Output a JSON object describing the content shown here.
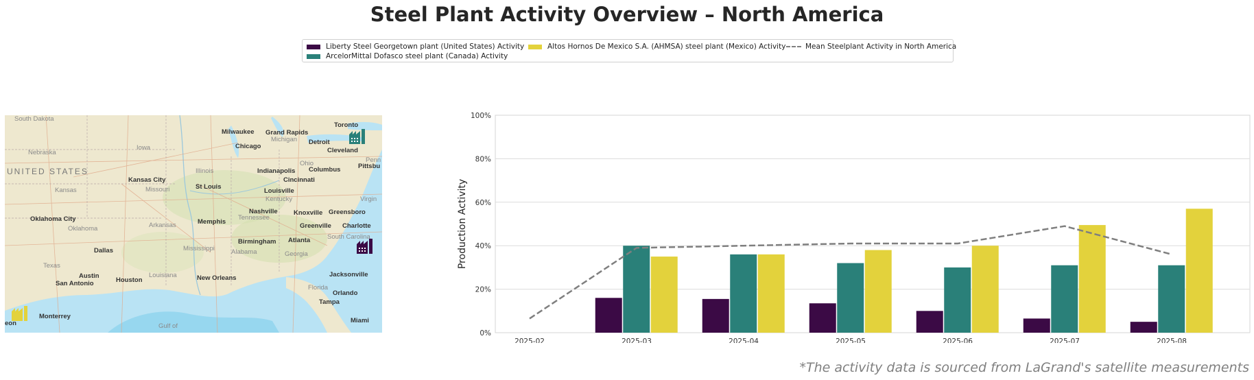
{
  "title": "Steel Plant Activity Overview – North America",
  "footnote": "*The activity data is sourced from LaGrand's satellite measurements",
  "legend": [
    {
      "label": "Liberty Steel Georgetown plant (United States) Activity",
      "color": "#3b0a45",
      "kind": "bar"
    },
    {
      "label": "ArcelorMittal Dofasco steel plant (Canada) Activity",
      "color": "#2a8079",
      "kind": "bar"
    },
    {
      "label": "Altos Hornos De Mexico S.A. (AHMSA) steel plant (Mexico) Activity",
      "color": "#e3d23c",
      "kind": "bar"
    },
    {
      "label": "Mean Steelplant Activity in North America",
      "color": "#7f7f7f",
      "kind": "dash"
    }
  ],
  "map": {
    "country_label": "UNITED STATES",
    "water_label": "Gulf of",
    "cities": [
      {
        "name": "South Dakota",
        "style": "light"
      },
      {
        "name": "Nebraska",
        "style": "light"
      },
      {
        "name": "Iowa",
        "style": "light"
      },
      {
        "name": "Kansas",
        "style": "light"
      },
      {
        "name": "Kansas City",
        "style": "bold"
      },
      {
        "name": "Oklahoma City",
        "style": "bold"
      },
      {
        "name": "Oklahoma",
        "style": "light"
      },
      {
        "name": "Texas",
        "style": "light"
      },
      {
        "name": "Dallas",
        "style": "bold"
      },
      {
        "name": "Austin",
        "style": "bold"
      },
      {
        "name": "San Antonio",
        "style": "bold"
      },
      {
        "name": "Houston",
        "style": "bold"
      },
      {
        "name": "Monterrey",
        "style": "bold"
      },
      {
        "name": "Milwaukee",
        "style": "bold"
      },
      {
        "name": "Chicago",
        "style": "bold"
      },
      {
        "name": "Grand Rapids",
        "style": "bold"
      },
      {
        "name": "Michigan",
        "style": "light"
      },
      {
        "name": "Detroit",
        "style": "bold"
      },
      {
        "name": "Toronto",
        "style": "bold"
      },
      {
        "name": "Cleveland",
        "style": "bold"
      },
      {
        "name": "Pittsbu",
        "style": "bold"
      },
      {
        "name": "Illinois",
        "style": "light"
      },
      {
        "name": "Indianapolis",
        "style": "bold"
      },
      {
        "name": "Columbus",
        "style": "bold"
      },
      {
        "name": "Ohio",
        "style": "light"
      },
      {
        "name": "Cincinnati",
        "style": "bold"
      },
      {
        "name": "St Louis",
        "style": "bold"
      },
      {
        "name": "Missouri",
        "style": "light"
      },
      {
        "name": "Louisville",
        "style": "bold"
      },
      {
        "name": "Kentucky",
        "style": "light"
      },
      {
        "name": "Nashville",
        "style": "bold"
      },
      {
        "name": "Knoxville",
        "style": "bold"
      },
      {
        "name": "Greensboro",
        "style": "bold"
      },
      {
        "name": "Tennessee",
        "style": "light"
      },
      {
        "name": "Memphis",
        "style": "bold"
      },
      {
        "name": "Arkansas",
        "style": "light"
      },
      {
        "name": "Greenville",
        "style": "bold"
      },
      {
        "name": "Charlotte",
        "style": "bold"
      },
      {
        "name": "Birmingham",
        "style": "bold"
      },
      {
        "name": "Atlanta",
        "style": "bold"
      },
      {
        "name": "Mississippi",
        "style": "light"
      },
      {
        "name": "Alabama",
        "style": "light"
      },
      {
        "name": "Georgia",
        "style": "light"
      },
      {
        "name": "South Carolina",
        "style": "light"
      },
      {
        "name": "Louisiana",
        "style": "light"
      },
      {
        "name": "New Orleans",
        "style": "bold"
      },
      {
        "name": "Jacksonville",
        "style": "bold"
      },
      {
        "name": "Florida",
        "style": "light"
      },
      {
        "name": "Orlando",
        "style": "bold"
      },
      {
        "name": "Tampa",
        "style": "bold"
      },
      {
        "name": "Miami",
        "style": "bold"
      },
      {
        "name": "Virgin",
        "style": "light"
      },
      {
        "name": "Penn",
        "style": "light"
      },
      {
        "name": "eon",
        "style": "bold"
      }
    ],
    "plants": [
      {
        "name": "ArcelorMittal Dofasco",
        "color": "#2a8079"
      },
      {
        "name": "Liberty Steel Georgetown",
        "color": "#3b0a45"
      },
      {
        "name": "AHMSA",
        "color": "#e3d23c"
      }
    ]
  },
  "chart_data": {
    "type": "bar",
    "categories": [
      "2025-02",
      "2025-03",
      "2025-04",
      "2025-05",
      "2025-06",
      "2025-07",
      "2025-08"
    ],
    "series": [
      {
        "name": "Liberty Steel Georgetown plant (United States) Activity",
        "color": "#3b0a45",
        "values": [
          null,
          16,
          15.5,
          13.5,
          10,
          6.5,
          5
        ]
      },
      {
        "name": "ArcelorMittal Dofasco steel plant (Canada) Activity",
        "color": "#2a8079",
        "values": [
          null,
          40,
          36,
          32,
          30,
          31,
          31
        ]
      },
      {
        "name": "Altos Hornos De Mexico S.A. (AHMSA) steel plant (Mexico) Activity",
        "color": "#e3d23c",
        "values": [
          null,
          35,
          36,
          38,
          40,
          49.5,
          57
        ]
      }
    ],
    "line": {
      "name": "Mean Steelplant Activity in North America",
      "color": "#7f7f7f",
      "values": [
        6.5,
        39,
        40,
        41,
        41,
        49,
        36
      ]
    },
    "ylabel": "Production Activity",
    "xlabel": "",
    "ylim": [
      0,
      100
    ],
    "yticks": [
      0,
      20,
      40,
      60,
      80,
      100
    ],
    "ytick_format": "%",
    "grid": true
  }
}
